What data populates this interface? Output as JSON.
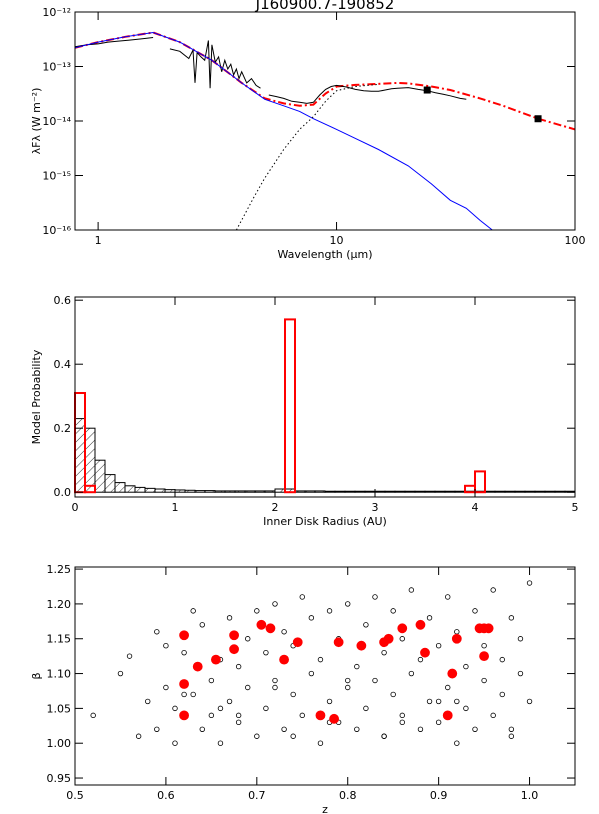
{
  "chart_data": [
    {
      "type": "line",
      "title": "J160900.7-190852",
      "xlabel": "Wavelength (μm)",
      "ylabel": "λFλ (W m⁻²)",
      "xlog": true,
      "ylog": true,
      "xlim": [
        0.8,
        100
      ],
      "ylim": [
        1e-16,
        1e-12
      ],
      "xticks": [
        1,
        10,
        100
      ],
      "yticks": [
        {
          "value": 1e-16,
          "label": "10⁻¹⁶"
        },
        {
          "value": 1e-15,
          "label": "10⁻¹⁵"
        },
        {
          "value": 1e-14,
          "label": "10⁻¹⁴"
        },
        {
          "value": 1e-13,
          "label": "10⁻¹³"
        },
        {
          "value": 1e-12,
          "label": "10⁻¹²"
        }
      ],
      "series": [
        {
          "color": "#ff0000",
          "style": "dashdot",
          "x": [
            0.8,
            1.0,
            1.3,
            1.7,
            2.2,
            3,
            4,
            5,
            6,
            7,
            8,
            9,
            10,
            12,
            15,
            18,
            20,
            25,
            30,
            40,
            50,
            70,
            100
          ],
          "values": [
            2.2e-13,
            2.8e-13,
            3.5e-13,
            4.2e-13,
            2.8e-13,
            1.3e-13,
            5e-14,
            2.6e-14,
            2.1e-14,
            1.9e-14,
            2e-14,
            3.2e-14,
            4.3e-14,
            4.6e-14,
            4.8e-14,
            5e-14,
            4.9e-14,
            4.3e-14,
            3.7e-14,
            2.6e-14,
            1.9e-14,
            1.1e-14,
            7e-15
          ]
        },
        {
          "color": "#000000",
          "style": "solid",
          "x": [
            0.8,
            0.9,
            1.0,
            1.1,
            1.2,
            1.3,
            1.4,
            1.5,
            1.6,
            1.7,
            1.85,
            2.0,
            2.2,
            2.4,
            2.5,
            2.55,
            2.6,
            2.7,
            2.8,
            2.9,
            2.95,
            3.0,
            3.1,
            3.2,
            3.3,
            3.4,
            3.5,
            3.6,
            3.7,
            3.8,
            3.9,
            4.0,
            4.2,
            4.4,
            4.6,
            4.8,
            5.0,
            5.2,
            5.6,
            6.0,
            6.5,
            7.0,
            7.5,
            8.0,
            8.5,
            9,
            9.5,
            10,
            11,
            12,
            13,
            14,
            15,
            16,
            17,
            18,
            20,
            22,
            24,
            26,
            28,
            30,
            33,
            35
          ],
          "values": [
            2.3e-13,
            2.5e-13,
            2.6e-13,
            2.8e-13,
            2.9e-13,
            3e-13,
            3.1e-13,
            3.2e-13,
            3.3e-13,
            3.4e-13,
            null,
            2.1e-13,
            1.9e-13,
            1.4e-13,
            2e-13,
            5e-14,
            1.8e-13,
            1.5e-13,
            1.3e-13,
            3e-13,
            4e-14,
            2.5e-13,
            1.2e-13,
            1.5e-13,
            8e-14,
            1.3e-13,
            9e-14,
            1.1e-13,
            7e-14,
            9e-14,
            6e-14,
            8e-14,
            5e-14,
            6e-14,
            4.5e-14,
            4e-14,
            null,
            3e-14,
            2.8e-14,
            2.6e-14,
            2.3e-14,
            2.2e-14,
            2.1e-14,
            2.2e-14,
            3e-14,
            3.8e-14,
            4.3e-14,
            4.5e-14,
            4.2e-14,
            3.8e-14,
            3.6e-14,
            3.5e-14,
            3.5e-14,
            3.7e-14,
            3.9e-14,
            4e-14,
            4.1e-14,
            3.8e-14,
            3.6e-14,
            3.3e-14,
            3.1e-14,
            2.9e-14,
            2.6e-14,
            2.5e-14
          ]
        },
        {
          "color": "#0000ff",
          "style": "solid",
          "x": [
            0.8,
            1.0,
            1.3,
            1.7,
            2.2,
            3,
            4,
            5,
            6,
            7,
            8,
            10,
            12,
            15,
            20,
            25,
            30,
            35,
            40,
            45
          ],
          "values": [
            2.2e-13,
            2.8e-13,
            3.5e-13,
            4.2e-13,
            2.8e-13,
            1.3e-13,
            5e-14,
            2.5e-14,
            1.9e-14,
            1.5e-14,
            1.1e-14,
            7e-15,
            4.8e-15,
            3e-15,
            1.5e-15,
            7e-16,
            3.5e-16,
            2.5e-16,
            1.5e-16,
            1e-16
          ]
        },
        {
          "color": "#000000",
          "style": "dotted",
          "x": [
            3.8,
            4.5,
            5,
            6,
            7,
            8,
            9,
            10,
            12,
            15
          ],
          "values": [
            1e-16,
            4e-16,
            9e-16,
            3e-15,
            7e-15,
            1.2e-14,
            2.3e-14,
            3.6e-14,
            4.3e-14,
            4.7e-14
          ]
        },
        {
          "color": "#000000",
          "style": "markers",
          "x": [
            24,
            70
          ],
          "values": [
            3.7e-14,
            1.1e-14
          ]
        }
      ]
    },
    {
      "type": "histogram",
      "xlabel": "Inner Disk Radius (AU)",
      "ylabel": "Model Probability",
      "xlim": [
        0,
        5
      ],
      "ylim": [
        -0.015,
        0.61
      ],
      "xticks": [
        0,
        1,
        2,
        3,
        4,
        5
      ],
      "yticks": [
        {
          "value": 0,
          "label": "0.0"
        },
        {
          "value": 0.2,
          "label": "0.2"
        },
        {
          "value": 0.4,
          "label": "0.4"
        },
        {
          "value": 0.6,
          "label": "0.6"
        }
      ],
      "bins": [
        0,
        0.1,
        0.2,
        0.3,
        0.4,
        0.5,
        0.6,
        0.7,
        0.8,
        0.9,
        1.0,
        1.1,
        1.2,
        1.3,
        1.4,
        1.5,
        1.6,
        1.7,
        1.8,
        1.9,
        2.0,
        2.1,
        2.2,
        2.3,
        2.4,
        2.5,
        2.6,
        2.7,
        2.8,
        2.9,
        3.0,
        3.1,
        3.2,
        3.3,
        3.4,
        3.5,
        3.6,
        3.7,
        3.8,
        3.9,
        4.0,
        4.1,
        4.2,
        4.3,
        4.4,
        4.5,
        4.6,
        4.7,
        4.8,
        4.9,
        5.0
      ],
      "series": [
        {
          "color": "#000000",
          "hatch": true,
          "values": [
            0.23,
            0.2,
            0.1,
            0.055,
            0.03,
            0.02,
            0.015,
            0.012,
            0.01,
            0.008,
            0.007,
            0.006,
            0.005,
            0.005,
            0.004,
            0.004,
            0.004,
            0.004,
            0.004,
            0.004,
            0.01,
            0.01,
            0.004,
            0.004,
            0.004,
            0.003,
            0.003,
            0.003,
            0.003,
            0.003,
            0.003,
            0.003,
            0.003,
            0.003,
            0.003,
            0.003,
            0.003,
            0.003,
            0.003,
            0.003,
            0.003,
            0.003,
            0.003,
            0.003,
            0.003,
            0.003,
            0.003,
            0.003,
            0.003,
            0.003
          ]
        },
        {
          "color": "#ff0000",
          "hatch": false,
          "values": [
            0.31,
            0.02,
            0,
            0,
            0,
            0,
            0,
            0,
            0,
            0,
            0,
            0,
            0,
            0,
            0,
            0,
            0,
            0,
            0,
            0,
            0,
            0.54,
            0,
            0,
            0,
            0,
            0,
            0,
            0,
            0,
            0,
            0,
            0,
            0,
            0,
            0,
            0,
            0,
            0,
            0.02,
            0.065,
            0,
            0,
            0,
            0,
            0,
            0,
            0,
            0,
            0
          ]
        }
      ]
    },
    {
      "type": "scatter",
      "xlabel": "z",
      "ylabel": "β",
      "xlim": [
        0.5,
        1.05
      ],
      "ylim": [
        0.94,
        1.253
      ],
      "xticks": [
        0.5,
        0.6,
        0.7,
        0.8,
        0.9,
        {
          "value": 1,
          "label": "1.0"
        }
      ],
      "yticks": [
        0.95,
        {
          "value": 1,
          "label": "1.00"
        },
        1.05,
        {
          "value": 1.1,
          "label": "1.10"
        },
        1.15,
        {
          "value": 1.2,
          "label": "1.20"
        },
        1.25
      ],
      "series": [
        {
          "color": "#000000",
          "marker": "open",
          "x": [
            0.52,
            0.55,
            0.56,
            0.57,
            0.58,
            0.59,
            0.59,
            0.6,
            0.6,
            0.61,
            0.61,
            0.62,
            0.63,
            0.63,
            0.64,
            0.64,
            0.65,
            0.65,
            0.66,
            0.66,
            0.67,
            0.67,
            0.68,
            0.68,
            0.69,
            0.69,
            0.7,
            0.7,
            0.71,
            0.71,
            0.72,
            0.72,
            0.73,
            0.73,
            0.74,
            0.74,
            0.75,
            0.75,
            0.76,
            0.76,
            0.77,
            0.77,
            0.78,
            0.78,
            0.79,
            0.79,
            0.8,
            0.8,
            0.81,
            0.81,
            0.82,
            0.82,
            0.83,
            0.83,
            0.84,
            0.84,
            0.85,
            0.85,
            0.86,
            0.86,
            0.87,
            0.87,
            0.88,
            0.88,
            0.89,
            0.89,
            0.9,
            0.9,
            0.91,
            0.91,
            0.92,
            0.92,
            0.93,
            0.93,
            0.94,
            0.94,
            0.95,
            0.95,
            0.96,
            0.96,
            0.97,
            0.97,
            0.98,
            0.98,
            0.99,
            0.99,
            1.0,
            1.0,
            0.62,
            0.68,
            0.74,
            0.8,
            0.86,
            0.92,
            0.98,
            0.66,
            0.72,
            0.78,
            0.84,
            0.9
          ],
          "values": [
            1.04,
            1.1,
            1.125,
            1.01,
            1.06,
            1.16,
            1.02,
            1.08,
            1.14,
            1.05,
            1.0,
            1.13,
            1.19,
            1.07,
            1.02,
            1.17,
            1.09,
            1.04,
            1.12,
            1.0,
            1.18,
            1.06,
            1.11,
            1.03,
            1.15,
            1.08,
            1.19,
            1.01,
            1.13,
            1.05,
            1.2,
            1.09,
            1.16,
            1.02,
            1.07,
            1.14,
            1.21,
            1.04,
            1.1,
            1.18,
            1.0,
            1.12,
            1.06,
            1.19,
            1.03,
            1.15,
            1.08,
            1.2,
            1.02,
            1.11,
            1.17,
            1.05,
            1.09,
            1.21,
            1.01,
            1.13,
            1.07,
            1.19,
            1.04,
            1.15,
            1.1,
            1.22,
            1.02,
            1.12,
            1.06,
            1.18,
            1.03,
            1.14,
            1.08,
            1.21,
            1.0,
            1.16,
            1.05,
            1.11,
            1.19,
            1.02,
            1.09,
            1.14,
            1.22,
            1.04,
            1.12,
            1.07,
            1.18,
            1.01,
            1.15,
            1.1,
            1.23,
            1.06,
            1.07,
            1.04,
            1.01,
            1.09,
            1.03,
            1.06,
            1.02,
            1.05,
            1.08,
            1.03,
            1.01,
            1.06
          ]
        },
        {
          "color": "#ff0000",
          "marker": "filled",
          "x": [
            0.62,
            0.635,
            0.62,
            0.62,
            0.655,
            0.675,
            0.675,
            0.705,
            0.715,
            0.73,
            0.745,
            0.77,
            0.785,
            0.79,
            0.815,
            0.84,
            0.845,
            0.86,
            0.88,
            0.885,
            0.91,
            0.915,
            0.92,
            0.945,
            0.95,
            0.95,
            0.955
          ],
          "values": [
            1.155,
            1.11,
            1.085,
            1.04,
            1.12,
            1.155,
            1.135,
            1.17,
            1.165,
            1.12,
            1.145,
            1.04,
            1.035,
            1.145,
            1.14,
            1.145,
            1.15,
            1.165,
            1.17,
            1.13,
            1.04,
            1.1,
            1.15,
            1.165,
            1.165,
            1.125,
            1.165
          ]
        }
      ]
    }
  ]
}
